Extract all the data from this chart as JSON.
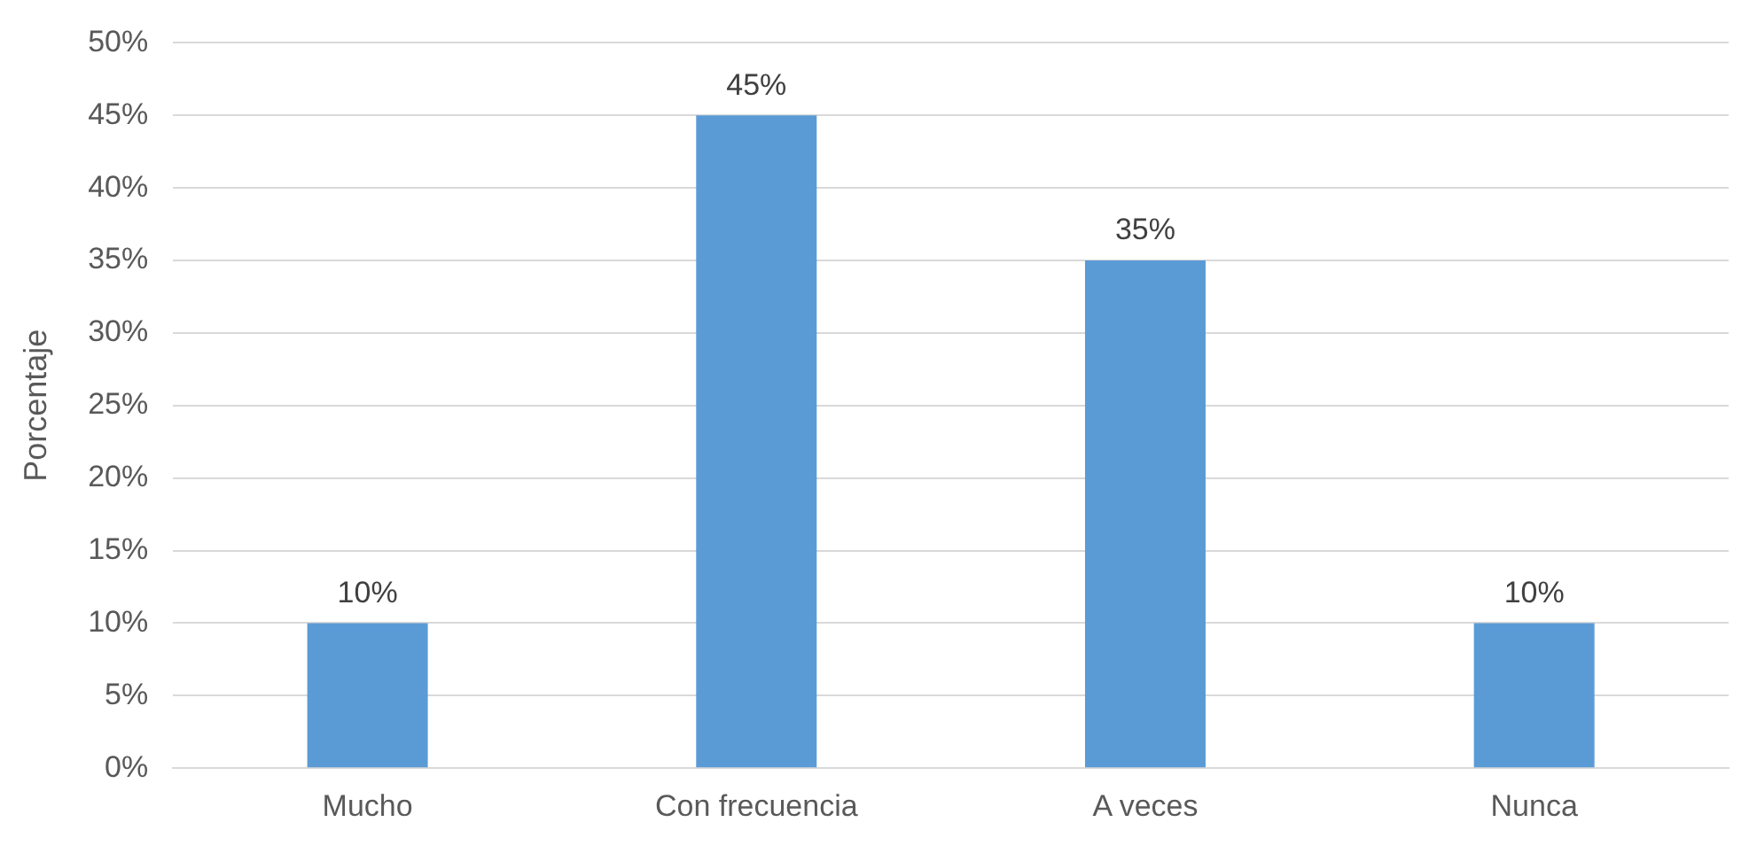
{
  "chart_data": {
    "type": "bar",
    "ylabel": "Porcentaje",
    "categories": [
      "Mucho",
      "Con frecuencia",
      "A veces",
      "Nunca"
    ],
    "values": [
      10,
      45,
      35,
      10
    ],
    "value_labels": [
      "10%",
      "45%",
      "35%",
      "10%"
    ],
    "color": "#5b9bd5",
    "ylim": [
      0,
      50
    ],
    "yticks": [
      {
        "value": 0,
        "label": "0%"
      },
      {
        "value": 5,
        "label": "5%"
      },
      {
        "value": 10,
        "label": "10%"
      },
      {
        "value": 15,
        "label": "15%"
      },
      {
        "value": 20,
        "label": "20%"
      },
      {
        "value": 25,
        "label": "25%"
      },
      {
        "value": 30,
        "label": "30%"
      },
      {
        "value": 35,
        "label": "35%"
      },
      {
        "value": 40,
        "label": "40%"
      },
      {
        "value": 45,
        "label": "45%"
      },
      {
        "value": 50,
        "label": "50%"
      }
    ],
    "grid": "y",
    "legend": false
  }
}
